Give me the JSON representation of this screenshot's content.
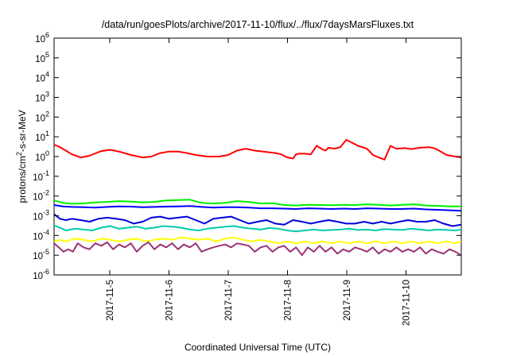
{
  "chart_data": {
    "type": "line",
    "title": "/data/run/goesPlots/archive/2017-11-10/flux/../flux/7daysMarsFluxes.txt",
    "xlabel": "Coordinated Universal Time (UTC)",
    "ylabel": {
      "base": "protons/cm",
      "sup": "2",
      "rest": "-s-sr-MeV"
    },
    "yscale": "log",
    "ylim": [
      1e-06,
      1000000.0
    ],
    "xlim": [
      "2017-11-04T04:00",
      "2017-11-11T00:00"
    ],
    "y_ticks": [
      {
        "base": "10",
        "exp": "-6",
        "value": 1e-06
      },
      {
        "base": "10",
        "exp": "-5",
        "value": 1e-05
      },
      {
        "base": "10",
        "exp": "-4",
        "value": 0.0001
      },
      {
        "base": "10",
        "exp": "-3",
        "value": 0.001
      },
      {
        "base": "10",
        "exp": "-2",
        "value": 0.01
      },
      {
        "base": "10",
        "exp": "-1",
        "value": 0.1
      },
      {
        "base": "10",
        "exp": "0",
        "value": 1
      },
      {
        "base": "10",
        "exp": "1",
        "value": 10
      },
      {
        "base": "10",
        "exp": "2",
        "value": 100
      },
      {
        "base": "10",
        "exp": "3",
        "value": 1000
      },
      {
        "base": "10",
        "exp": "4",
        "value": 10000
      },
      {
        "base": "10",
        "exp": "5",
        "value": 100000
      },
      {
        "base": "10",
        "exp": "6",
        "value": 1000000
      }
    ],
    "x_ticks": [
      "2017-11-5",
      "2017-11-6",
      "2017-11-7",
      "2017-11-8",
      "2017-11-9",
      "2017-11-10"
    ],
    "grid": false,
    "legend": "none",
    "series": [
      {
        "color": "#ff0000",
        "x": [
          0,
          0.1,
          0.2,
          0.3,
          0.45,
          0.6,
          0.8,
          0.95,
          1.1,
          1.3,
          1.5,
          1.65,
          1.8,
          1.95,
          2.1,
          2.25,
          2.4,
          2.6,
          2.8,
          2.95,
          3.1,
          3.25,
          3.4,
          3.6,
          3.75,
          3.85,
          3.95,
          4.05,
          4.1,
          4.15,
          4.25,
          4.35,
          4.45,
          4.55,
          4.6,
          4.65,
          4.75,
          4.85,
          4.95,
          5.05,
          5.15,
          5.3,
          5.35,
          5.4,
          5.5,
          5.6,
          5.7,
          5.8,
          5.95,
          6.05,
          6.2,
          6.35,
          6.45,
          6.5,
          6.55,
          6.65,
          6.8,
          6.9
        ],
        "y": [
          4,
          3,
          2,
          1.3,
          0.9,
          1.1,
          1.9,
          2.2,
          1.8,
          1.2,
          0.9,
          1.0,
          1.5,
          1.8,
          1.8,
          1.5,
          1.2,
          1.0,
          1.0,
          1.2,
          2.0,
          2.5,
          2.0,
          1.7,
          1.5,
          1.3,
          0.9,
          0.8,
          1.3,
          1.4,
          1.4,
          1.3,
          3.5,
          2.3,
          2.0,
          2.8,
          2.5,
          3.0,
          7.0,
          5.0,
          3.5,
          2.5,
          1.8,
          1.2,
          0.9,
          0.7,
          3.5,
          2.5,
          2.7,
          2.4,
          2.8,
          3.0,
          2.6,
          2.2,
          1.8,
          1.2,
          1.0,
          0.9
        ]
      },
      {
        "color": "#00ee00",
        "x": [
          0,
          0.15,
          0.3,
          0.5,
          0.7,
          0.9,
          1.1,
          1.3,
          1.5,
          1.7,
          1.9,
          2.1,
          2.3,
          2.5,
          2.7,
          2.9,
          3.1,
          3.3,
          3.5,
          3.7,
          3.9,
          4.1,
          4.3,
          4.5,
          4.7,
          4.9,
          5.1,
          5.3,
          5.5,
          5.7,
          5.9,
          6.1,
          6.3,
          6.5,
          6.7,
          6.9
        ],
        "y": [
          0.006,
          0.0045,
          0.004,
          0.0042,
          0.0047,
          0.005,
          0.0055,
          0.0052,
          0.0048,
          0.005,
          0.006,
          0.0062,
          0.0065,
          0.0045,
          0.0042,
          0.0045,
          0.0055,
          0.005,
          0.0042,
          0.0043,
          0.0035,
          0.0033,
          0.0036,
          0.0035,
          0.0034,
          0.0036,
          0.0035,
          0.0038,
          0.0036,
          0.0033,
          0.0036,
          0.0038,
          0.0033,
          0.0032,
          0.003,
          0.003
        ]
      },
      {
        "color": "#0000ff",
        "x": [
          0,
          0.15,
          0.3,
          0.5,
          0.7,
          0.9,
          1.1,
          1.3,
          1.5,
          1.7,
          1.9,
          2.1,
          2.3,
          2.5,
          2.7,
          2.9,
          3.1,
          3.3,
          3.5,
          3.7,
          3.9,
          4.1,
          4.3,
          4.5,
          4.7,
          4.9,
          5.1,
          5.3,
          5.5,
          5.7,
          5.9,
          6.1,
          6.3,
          6.5,
          6.7,
          6.9
        ],
        "y": [
          0.0035,
          0.003,
          0.0028,
          0.0027,
          0.0026,
          0.0028,
          0.003,
          0.0029,
          0.0027,
          0.0028,
          0.0029,
          0.003,
          0.0031,
          0.0028,
          0.0026,
          0.0027,
          0.0027,
          0.0026,
          0.0024,
          0.0024,
          0.0023,
          0.0022,
          0.0024,
          0.0023,
          0.0022,
          0.0023,
          0.0022,
          0.0024,
          0.0023,
          0.0022,
          0.0022,
          0.0023,
          0.0021,
          0.002,
          0.0019,
          0.0018
        ]
      },
      {
        "color": "#0000dd",
        "x": [
          0,
          0.1,
          0.2,
          0.3,
          0.45,
          0.6,
          0.75,
          0.9,
          1.05,
          1.2,
          1.35,
          1.5,
          1.65,
          1.8,
          1.95,
          2.1,
          2.25,
          2.4,
          2.55,
          2.7,
          2.85,
          3.0,
          3.15,
          3.3,
          3.45,
          3.6,
          3.75,
          3.9,
          4.05,
          4.2,
          4.35,
          4.5,
          4.65,
          4.8,
          4.95,
          5.1,
          5.25,
          5.4,
          5.55,
          5.7,
          5.85,
          6.0,
          6.15,
          6.3,
          6.45,
          6.6,
          6.75,
          6.9
        ],
        "y": [
          0.0012,
          0.0007,
          0.0006,
          0.0007,
          0.0006,
          0.0005,
          0.0007,
          0.0008,
          0.0007,
          0.0006,
          0.0004,
          0.0005,
          0.0008,
          0.0009,
          0.0007,
          0.0008,
          0.0009,
          0.0006,
          0.0004,
          0.0007,
          0.0008,
          0.0009,
          0.0006,
          0.0004,
          0.0005,
          0.0006,
          0.0004,
          0.00035,
          0.0006,
          0.0005,
          0.0004,
          0.0005,
          0.0006,
          0.0005,
          0.0004,
          0.0004,
          0.0005,
          0.0004,
          0.0005,
          0.0004,
          0.0005,
          0.0006,
          0.0005,
          0.0005,
          0.0006,
          0.0004,
          0.0003,
          0.00035
        ]
      },
      {
        "color": "#00ccaa",
        "x": [
          0,
          0.1,
          0.2,
          0.35,
          0.5,
          0.65,
          0.8,
          0.95,
          1.1,
          1.25,
          1.4,
          1.55,
          1.7,
          1.85,
          2.0,
          2.15,
          2.3,
          2.45,
          2.6,
          2.75,
          2.9,
          3.05,
          3.2,
          3.35,
          3.5,
          3.65,
          3.8,
          3.95,
          4.1,
          4.25,
          4.4,
          4.55,
          4.7,
          4.85,
          5.0,
          5.15,
          5.3,
          5.45,
          5.6,
          5.75,
          5.9,
          6.05,
          6.2,
          6.35,
          6.5,
          6.65,
          6.8,
          6.9
        ],
        "y": [
          0.00032,
          0.00025,
          0.00018,
          0.00022,
          0.0002,
          0.00018,
          0.00025,
          0.0003,
          0.00022,
          0.00025,
          0.00028,
          0.00022,
          0.00025,
          0.0003,
          0.00028,
          0.00025,
          0.0002,
          0.00018,
          0.00022,
          0.00025,
          0.00028,
          0.0003,
          0.00025,
          0.00022,
          0.0002,
          0.00024,
          0.00022,
          0.00018,
          0.00016,
          0.00018,
          0.0002,
          0.00018,
          0.00019,
          0.0002,
          0.00022,
          0.00019,
          0.0002,
          0.00018,
          0.00021,
          0.0002,
          0.00019,
          0.00022,
          0.0002,
          0.00018,
          0.0002,
          0.00019,
          0.00018,
          0.0002
        ]
      },
      {
        "color": "#ffff00",
        "x": [
          0,
          0.1,
          0.2,
          0.35,
          0.5,
          0.65,
          0.8,
          0.95,
          1.1,
          1.25,
          1.4,
          1.55,
          1.7,
          1.85,
          2.0,
          2.15,
          2.3,
          2.45,
          2.6,
          2.75,
          2.9,
          3.05,
          3.2,
          3.35,
          3.5,
          3.65,
          3.8,
          3.95,
          4.1,
          4.25,
          4.4,
          4.55,
          4.7,
          4.85,
          5.0,
          5.15,
          5.3,
          5.45,
          5.6,
          5.75,
          5.9,
          6.05,
          6.2,
          6.35,
          6.5,
          6.65,
          6.8,
          6.9
        ],
        "y": [
          5e-05,
          6e-05,
          5e-05,
          7e-05,
          6e-05,
          5e-05,
          7e-05,
          6e-05,
          5e-05,
          6e-05,
          7e-05,
          5e-05,
          6e-05,
          7e-05,
          6e-05,
          8e-05,
          7e-05,
          6e-05,
          7e-05,
          5e-05,
          7e-05,
          8e-05,
          6e-05,
          5e-05,
          6e-05,
          5e-05,
          4e-05,
          5e-05,
          4e-05,
          5e-05,
          4e-05,
          5e-05,
          4e-05,
          5e-05,
          4e-05,
          5e-05,
          4e-05,
          5e-05,
          4e-05,
          5e-05,
          4e-05,
          5e-05,
          4e-05,
          5e-05,
          4e-05,
          5e-05,
          4e-05,
          5e-05
        ]
      },
      {
        "color": "#993377",
        "x": [
          0,
          0.08,
          0.16,
          0.24,
          0.32,
          0.4,
          0.5,
          0.6,
          0.7,
          0.8,
          0.9,
          1.0,
          1.1,
          1.2,
          1.3,
          1.4,
          1.5,
          1.6,
          1.7,
          1.8,
          1.9,
          2.0,
          2.1,
          2.2,
          2.3,
          2.4,
          2.5,
          2.6,
          2.7,
          2.8,
          2.9,
          3.0,
          3.1,
          3.2,
          3.3,
          3.4,
          3.5,
          3.6,
          3.7,
          3.8,
          3.9,
          4.0,
          4.1,
          4.2,
          4.3,
          4.4,
          4.5,
          4.6,
          4.7,
          4.8,
          4.9,
          5.0,
          5.1,
          5.2,
          5.3,
          5.4,
          5.5,
          5.6,
          5.7,
          5.8,
          5.9,
          6.0,
          6.1,
          6.2,
          6.3,
          6.4,
          6.5,
          6.6,
          6.7,
          6.8,
          6.9
        ],
        "y": [
          4e-05,
          2.5e-05,
          1.5e-05,
          2e-05,
          1.5e-05,
          4e-05,
          2.5e-05,
          2e-05,
          4e-05,
          3e-05,
          4.5e-05,
          2e-05,
          3.5e-05,
          2.5e-05,
          4e-05,
          1.5e-05,
          3e-05,
          4.5e-05,
          2e-05,
          3.5e-05,
          2.5e-05,
          4e-05,
          2e-05,
          3.5e-05,
          2.5e-05,
          4e-05,
          1.5e-05,
          2e-05,
          2.5e-05,
          3e-05,
          3.5e-05,
          2.5e-05,
          4e-05,
          3.5e-05,
          3e-05,
          1.5e-05,
          2.5e-05,
          3e-05,
          1.5e-05,
          2.5e-05,
          3e-05,
          1.5e-05,
          2.5e-05,
          1e-05,
          2.5e-05,
          1.5e-05,
          3e-05,
          1.5e-05,
          2.5e-05,
          1.2e-05,
          2e-05,
          1.5e-05,
          2.5e-05,
          2e-05,
          1.5e-05,
          2.5e-05,
          1.2e-05,
          2e-05,
          1.5e-05,
          2.5e-05,
          1.5e-05,
          2e-05,
          1.5e-05,
          2.5e-05,
          1.2e-05,
          2e-05,
          1.5e-05,
          1.2e-05,
          2e-05,
          1.5e-05,
          1e-05
        ]
      }
    ]
  }
}
